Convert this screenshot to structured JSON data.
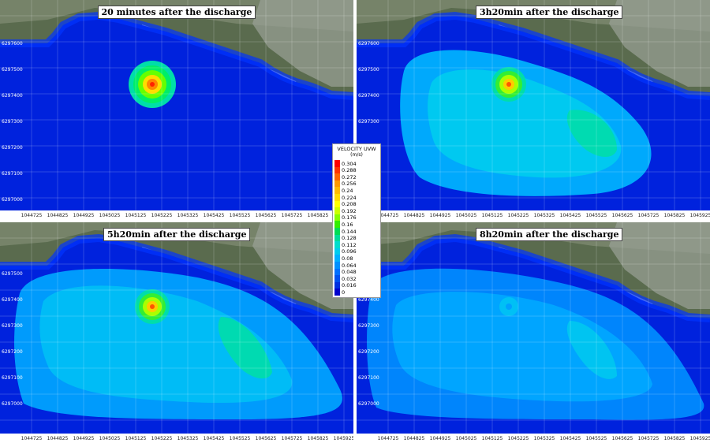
{
  "panels": [
    {
      "title": "20 minutes after the discharge",
      "state": "early"
    },
    {
      "title": "3h20min after the discharge",
      "state": "mid"
    },
    {
      "title": "5h20min after the discharge",
      "state": "late"
    },
    {
      "title": "8h20min after the discharge",
      "state": "final"
    }
  ],
  "axes": {
    "x_ticks": [
      "1044725",
      "1044825",
      "1044925",
      "1045025",
      "1045125",
      "1045225",
      "1045325",
      "1045425",
      "1045525",
      "1045625",
      "1045725",
      "1045825",
      "1045925"
    ],
    "y_ticks_top": [
      "6297600",
      "6297500",
      "6297400",
      "6297300",
      "6297200",
      "6297100",
      "6297000"
    ],
    "y_ticks_bottom": [
      "6297500",
      "6297400",
      "6297300",
      "6297200",
      "6297100",
      "6297000"
    ]
  },
  "legend": {
    "title": "VELOCITY UVW",
    "unit": "(m/s)",
    "levels": [
      "0.304",
      "0.288",
      "0.272",
      "0.256",
      "0.24",
      "0.224",
      "0.208",
      "0.192",
      "0.176",
      "0.16",
      "0.144",
      "0.128",
      "0.112",
      "0.096",
      "0.08",
      "0.064",
      "0.048",
      "0.032",
      "0.016",
      "0"
    ],
    "colors": [
      "#ff0000",
      "#ff3300",
      "#ff6600",
      "#ff9900",
      "#ffbb00",
      "#ffdd00",
      "#ffff00",
      "#ccff00",
      "#88ff00",
      "#33ee00",
      "#00dd55",
      "#00dd99",
      "#00ddcc",
      "#00ccee",
      "#00b0ff",
      "#0090ff",
      "#0070ff",
      "#0050f0",
      "#0030e0",
      "#0000cc"
    ]
  }
}
